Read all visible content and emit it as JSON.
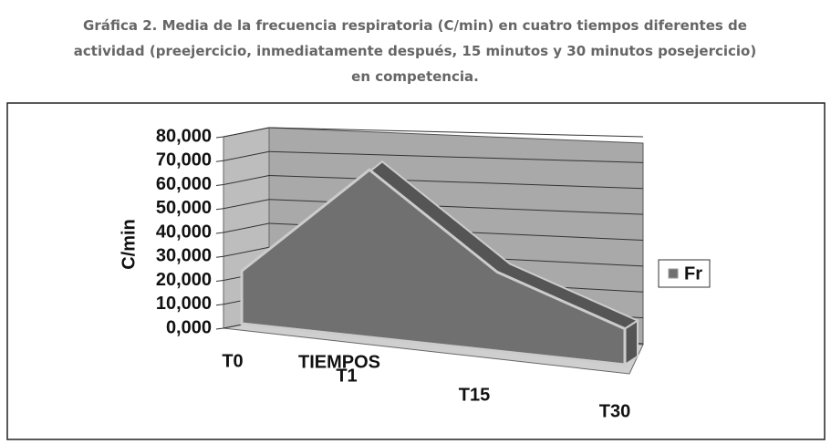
{
  "chart_data": {
    "type": "area3d",
    "title": "Gráfica 2. Media de la frecuencia respiratoria (C/min) en cuatro tiempos diferentes de actividad (preejercicio, inmediatamente después, 15 minutos y 30 minutos posejercicio) en competencia.",
    "x_label": "TIEMPOS",
    "y_label": "C/min",
    "categories": [
      "T0",
      "T1",
      "T15",
      "T30"
    ],
    "series": [
      {
        "name": "Fr",
        "color": "#707070",
        "values": [
          22,
          70,
          33,
          15
        ]
      }
    ],
    "ylim": [
      0,
      80
    ],
    "yticks": [
      {
        "value": 0,
        "label": "0,000"
      },
      {
        "value": 10,
        "label": "10,000"
      },
      {
        "value": 20,
        "label": "20,000"
      },
      {
        "value": 30,
        "label": "30,000"
      },
      {
        "value": 40,
        "label": "40,000"
      },
      {
        "value": 50,
        "label": "50,000"
      },
      {
        "value": 60,
        "label": "60,000"
      },
      {
        "value": 70,
        "label": "70,000"
      },
      {
        "value": 80,
        "label": "80,000"
      }
    ],
    "grid": true,
    "legend": "right"
  }
}
